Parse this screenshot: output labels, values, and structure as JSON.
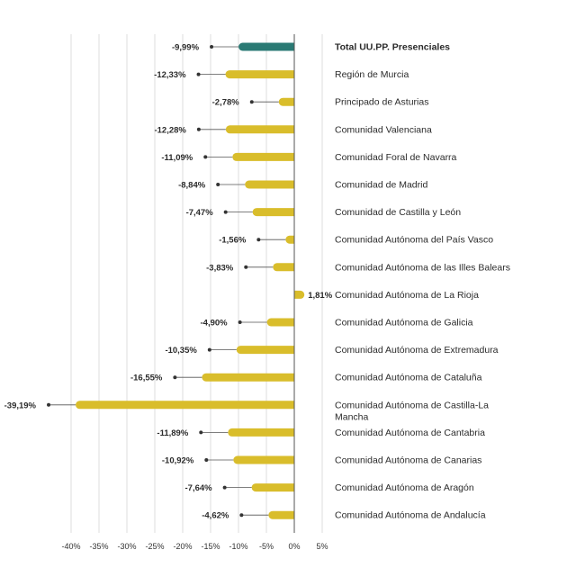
{
  "chart_data": {
    "type": "bar",
    "orientation": "horizontal",
    "categories": [
      "Total UU.PP. Presenciales",
      "Región de Murcia",
      "Principado de Asturias",
      "Comunidad Valenciana",
      "Comunidad Foral de Navarra",
      "Comunidad de Madrid",
      "Comunidad de Castilla y León",
      "Comunidad Autónoma del País Vasco",
      "Comunidad Autónoma de las Illes Balears",
      "Comunidad Autónoma de La Rioja",
      "Comunidad Autónoma de Galicia",
      "Comunidad Autónoma de Extremadura",
      "Comunidad Autónoma de Cataluña",
      "Comunidad Autónoma de Castilla-La Mancha",
      "Comunidad Autónoma de Cantabria",
      "Comunidad Autónoma de Canarias",
      "Comunidad Autónoma de Aragón",
      "Comunidad Autónoma de Andalucía"
    ],
    "category_lines": [
      [
        "Total UU.PP. Presenciales"
      ],
      [
        "Región de Murcia"
      ],
      [
        "Principado de Asturias"
      ],
      [
        "Comunidad Valenciana"
      ],
      [
        "Comunidad Foral de Navarra"
      ],
      [
        "Comunidad de Madrid"
      ],
      [
        "Comunidad de Castilla y León"
      ],
      [
        "Comunidad Autónoma del País Vasco"
      ],
      [
        "Comunidad Autónoma de las Illes Balears"
      ],
      [
        "Comunidad Autónoma de La Rioja"
      ],
      [
        "Comunidad Autónoma de Galicia"
      ],
      [
        "Comunidad Autónoma de Extremadura"
      ],
      [
        "Comunidad Autónoma de Cataluña"
      ],
      [
        "Comunidad Autónoma de Castilla-La",
        "Mancha"
      ],
      [
        "Comunidad Autónoma de Cantabria"
      ],
      [
        "Comunidad Autónoma de Canarias"
      ],
      [
        "Comunidad Autónoma de Aragón"
      ],
      [
        "Comunidad Autónoma de Andalucía"
      ]
    ],
    "values": [
      -9.99,
      -12.33,
      -2.78,
      -12.28,
      -11.09,
      -8.84,
      -7.47,
      -1.56,
      -3.83,
      1.81,
      -4.9,
      -10.35,
      -16.55,
      -39.19,
      -11.89,
      -10.92,
      -7.64,
      -4.62
    ],
    "value_labels": [
      "-9,99%",
      "-12,33%",
      "-2,78%",
      "-12,28%",
      "-11,09%",
      "-8,84%",
      "-7,47%",
      "-1,56%",
      "-3,83%",
      "1,81%",
      "-4,90%",
      "-10,35%",
      "-16,55%",
      "-39,19%",
      "-11,89%",
      "-10,92%",
      "-7,64%",
      "-4,62%"
    ],
    "highlight_index": 0,
    "colors": {
      "bar": "#d9bd2b",
      "highlight": "#2a7a74",
      "dot": "#333333",
      "leader": "#555555",
      "grid": "#dddddd",
      "zero": "#555555"
    },
    "xlim": [
      -42,
      5
    ],
    "xticks": [
      -40,
      -35,
      -30,
      -25,
      -20,
      -15,
      -10,
      -5,
      0,
      5
    ],
    "xtick_labels": [
      "-40%",
      "-35%",
      "-30%",
      "-25%",
      "-20%",
      "-15%",
      "-10%",
      "-5%",
      "0%",
      "5%"
    ],
    "grid": true,
    "title": "",
    "xlabel": "",
    "ylabel": ""
  }
}
